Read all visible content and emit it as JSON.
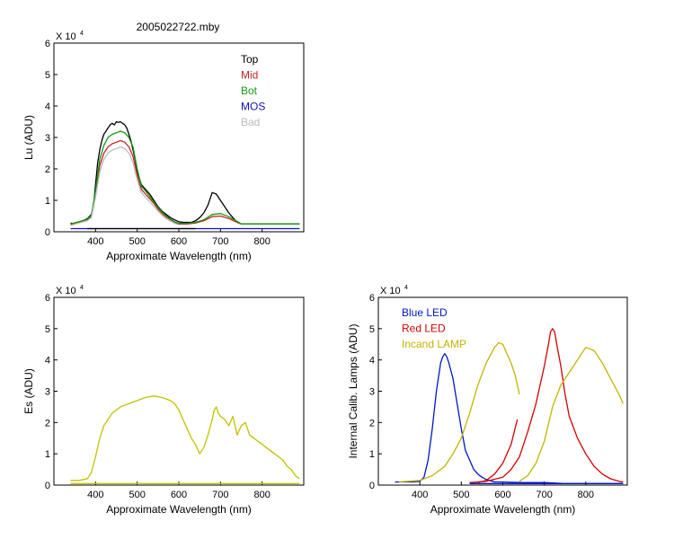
{
  "figure": {
    "title": "2005022722.mby",
    "colors": {
      "top": "#000000",
      "mid": "#cc2222",
      "bot": "#119911",
      "mos": "#1111bb",
      "bad": "#bbbbbb",
      "es": "#c2c200",
      "blue_led": "#0018c8",
      "red_led": "#d40000",
      "incand": "#c2b400"
    }
  },
  "chart_data": [
    {
      "id": "lu",
      "type": "line",
      "title": "2005022722.mby",
      "xlabel": "Approximate Wavelength (nm)",
      "ylabel": "Lu (ADU)",
      "y_multiplier_label": "X 10",
      "y_multiplier_exp": "4",
      "xlim": [
        300,
        900
      ],
      "ylim": [
        0,
        6
      ],
      "xticks": [
        400,
        500,
        600,
        700,
        800
      ],
      "yticks": [
        0,
        1,
        2,
        3,
        4,
        5,
        6
      ],
      "legend_position": "top-right",
      "series": [
        {
          "name": "Top",
          "color_key": "top",
          "x": [
            340,
            350,
            360,
            370,
            380,
            390,
            395,
            400,
            405,
            410,
            415,
            420,
            425,
            430,
            435,
            440,
            445,
            450,
            455,
            460,
            465,
            470,
            475,
            480,
            485,
            490,
            495,
            500,
            510,
            520,
            530,
            540,
            550,
            560,
            570,
            580,
            590,
            600,
            610,
            620,
            630,
            640,
            650,
            660,
            670,
            680,
            690,
            700,
            710,
            720,
            730,
            740,
            750,
            760,
            780,
            800,
            820,
            850,
            890
          ],
          "y": [
            0.28,
            0.25,
            0.3,
            0.35,
            0.42,
            0.55,
            0.8,
            1.5,
            2.2,
            2.6,
            2.9,
            3.1,
            3.2,
            3.3,
            3.4,
            3.45,
            3.4,
            3.5,
            3.48,
            3.5,
            3.45,
            3.4,
            3.3,
            3.1,
            2.9,
            2.6,
            2.3,
            1.9,
            1.5,
            1.35,
            1.2,
            1.0,
            0.8,
            0.65,
            0.55,
            0.45,
            0.38,
            0.32,
            0.3,
            0.3,
            0.3,
            0.35,
            0.45,
            0.6,
            0.85,
            1.25,
            1.2,
            1.0,
            0.8,
            0.6,
            0.45,
            0.3,
            0.25,
            0.25,
            0.25,
            0.25,
            0.25,
            0.25,
            0.25
          ]
        },
        {
          "name": "Mid",
          "color_key": "mid",
          "x": [
            340,
            360,
            380,
            390,
            400,
            410,
            420,
            430,
            440,
            450,
            460,
            470,
            480,
            490,
            500,
            510,
            520,
            530,
            540,
            550,
            560,
            570,
            580,
            590,
            600,
            620,
            640,
            660,
            680,
            700,
            720,
            740,
            750,
            780,
            820,
            890
          ],
          "y": [
            0.22,
            0.3,
            0.38,
            0.5,
            1.2,
            2.1,
            2.5,
            2.7,
            2.8,
            2.85,
            2.9,
            2.85,
            2.7,
            2.4,
            1.8,
            1.35,
            1.2,
            1.05,
            0.9,
            0.72,
            0.58,
            0.47,
            0.38,
            0.3,
            0.25,
            0.25,
            0.28,
            0.35,
            0.48,
            0.5,
            0.42,
            0.3,
            0.25,
            0.25,
            0.25,
            0.25
          ]
        },
        {
          "name": "Bot",
          "color_key": "bot",
          "x": [
            340,
            360,
            380,
            390,
            400,
            410,
            420,
            430,
            440,
            450,
            460,
            470,
            480,
            490,
            500,
            510,
            520,
            530,
            540,
            550,
            560,
            570,
            580,
            590,
            600,
            620,
            640,
            660,
            680,
            700,
            720,
            740,
            750,
            780,
            820,
            890
          ],
          "y": [
            0.25,
            0.32,
            0.4,
            0.52,
            1.3,
            2.3,
            2.75,
            3.0,
            3.1,
            3.15,
            3.2,
            3.15,
            3.0,
            2.7,
            2.0,
            1.45,
            1.3,
            1.12,
            0.95,
            0.77,
            0.62,
            0.5,
            0.4,
            0.32,
            0.27,
            0.27,
            0.3,
            0.38,
            0.55,
            0.58,
            0.48,
            0.33,
            0.25,
            0.25,
            0.25,
            0.25
          ]
        },
        {
          "name": "MOS",
          "color_key": "mos",
          "x": [
            340,
            890
          ],
          "y": [
            0.1,
            0.1
          ]
        },
        {
          "name": "Bad",
          "color_key": "bad",
          "x": [
            340,
            360,
            380,
            390,
            400,
            410,
            420,
            430,
            440,
            450,
            460,
            470,
            480,
            490,
            500,
            510,
            520,
            530,
            540,
            550,
            560,
            570,
            580,
            590,
            600
          ],
          "y": [
            0.2,
            0.28,
            0.35,
            0.45,
            1.1,
            1.9,
            2.3,
            2.5,
            2.6,
            2.65,
            2.7,
            2.65,
            2.5,
            2.2,
            1.65,
            1.25,
            1.1,
            0.95,
            0.82,
            0.66,
            0.52,
            0.42,
            0.34,
            0.27,
            0.22
          ]
        },
        {
          "name": "",
          "color_key": "top",
          "x": [
            380,
            640
          ],
          "y": [
            0.1,
            0.1
          ]
        }
      ]
    },
    {
      "id": "es",
      "type": "line",
      "xlabel": "Approximate Wavelength (nm)",
      "ylabel": "Es  (ADU)",
      "y_multiplier_label": "X 10",
      "y_multiplier_exp": "4",
      "xlim": [
        300,
        900
      ],
      "ylim": [
        0,
        6
      ],
      "xticks": [
        400,
        500,
        600,
        700,
        800
      ],
      "yticks": [
        0,
        1,
        2,
        3,
        4,
        5,
        6
      ],
      "series": [
        {
          "name": "",
          "color_key": "es",
          "x": [
            340,
            360,
            380,
            390,
            400,
            410,
            420,
            430,
            440,
            450,
            460,
            480,
            500,
            520,
            540,
            560,
            580,
            590,
            600,
            610,
            620,
            630,
            640,
            650,
            660,
            670,
            680,
            685,
            690,
            695,
            700,
            710,
            720,
            730,
            740,
            750,
            760,
            770,
            780,
            790,
            800,
            810,
            820,
            830,
            840,
            850,
            860,
            870,
            880,
            890
          ],
          "y": [
            0.15,
            0.15,
            0.2,
            0.4,
            0.9,
            1.5,
            1.9,
            2.1,
            2.3,
            2.4,
            2.5,
            2.6,
            2.7,
            2.8,
            2.85,
            2.8,
            2.7,
            2.6,
            2.4,
            2.1,
            1.8,
            1.5,
            1.3,
            1.0,
            1.2,
            1.6,
            2.1,
            2.4,
            2.5,
            2.3,
            2.2,
            2.1,
            1.9,
            2.2,
            1.6,
            1.9,
            2.0,
            1.6,
            1.5,
            1.4,
            1.3,
            1.2,
            1.1,
            1.0,
            0.9,
            0.8,
            0.6,
            0.5,
            0.3,
            0.2
          ]
        },
        {
          "name": "",
          "color_key": "es",
          "x": [
            340,
            890
          ],
          "y": [
            0.05,
            0.05
          ]
        }
      ]
    },
    {
      "id": "cal",
      "type": "line",
      "xlabel": "Approximate Wavelength (nm)",
      "ylabel": "Internal Calib. Lamps (ADU)",
      "y_multiplier_label": "X 10",
      "y_multiplier_exp": "4",
      "xlim": [
        300,
        900
      ],
      "ylim": [
        0,
        6
      ],
      "xticks": [
        400,
        500,
        600,
        700,
        800
      ],
      "yticks": [
        0,
        1,
        2,
        3,
        4,
        5,
        6
      ],
      "legend_position": "top-left",
      "series": [
        {
          "name": "Blue LED",
          "color_key": "blue_led",
          "x": [
            340,
            380,
            400,
            410,
            420,
            430,
            440,
            450,
            455,
            460,
            465,
            470,
            480,
            490,
            500,
            510,
            520,
            530,
            540,
            550,
            560,
            570,
            580,
            600,
            650,
            700,
            750,
            800,
            850,
            890
          ],
          "y": [
            0.1,
            0.1,
            0.12,
            0.25,
            0.8,
            1.8,
            3.0,
            3.9,
            4.1,
            4.2,
            4.1,
            3.9,
            3.4,
            2.6,
            1.8,
            1.1,
            0.8,
            0.5,
            0.35,
            0.25,
            0.18,
            0.14,
            0.1,
            0.1,
            0.08,
            0.08,
            0.05,
            0.05,
            0.05,
            0.05
          ]
        },
        {
          "name": "Red LED",
          "color_key": "red_led",
          "x": [
            520,
            560,
            600,
            620,
            640,
            660,
            680,
            690,
            700,
            710,
            715,
            720,
            725,
            730,
            740,
            750,
            760,
            780,
            800,
            820,
            840,
            860,
            880,
            890
          ],
          "y": [
            0.08,
            0.12,
            0.25,
            0.5,
            0.9,
            1.7,
            2.6,
            3.2,
            3.8,
            4.5,
            4.9,
            5.0,
            4.9,
            4.5,
            3.8,
            2.9,
            2.2,
            1.5,
            1.0,
            0.6,
            0.35,
            0.2,
            0.12,
            0.1
          ]
        },
        {
          "name": "",
          "color_key": "red_led",
          "x": [
            540,
            560,
            580,
            600,
            620,
            635
          ],
          "y": [
            0.08,
            0.15,
            0.35,
            0.7,
            1.3,
            2.1
          ]
        },
        {
          "name": "Incand LAMP",
          "color_key": "incand",
          "x": [
            350,
            400,
            430,
            460,
            480,
            500,
            520,
            540,
            560,
            580,
            590,
            600,
            610,
            620,
            630,
            640
          ],
          "y": [
            0.1,
            0.15,
            0.3,
            0.6,
            1.0,
            1.5,
            2.3,
            3.2,
            3.9,
            4.4,
            4.55,
            4.5,
            4.2,
            3.9,
            3.5,
            2.9
          ]
        },
        {
          "name": "",
          "color_key": "incand",
          "x": [
            640,
            660,
            680,
            700,
            720,
            740,
            760,
            780,
            800,
            820,
            840,
            860,
            880,
            890
          ],
          "y": [
            0.12,
            0.3,
            0.7,
            1.4,
            2.5,
            3.2,
            3.6,
            4.0,
            4.4,
            4.3,
            3.9,
            3.4,
            2.9,
            2.6
          ]
        },
        {
          "name": "",
          "color_key": "blue_led",
          "x": [
            520,
            890
          ],
          "y": [
            0.05,
            0.05
          ]
        }
      ]
    }
  ]
}
